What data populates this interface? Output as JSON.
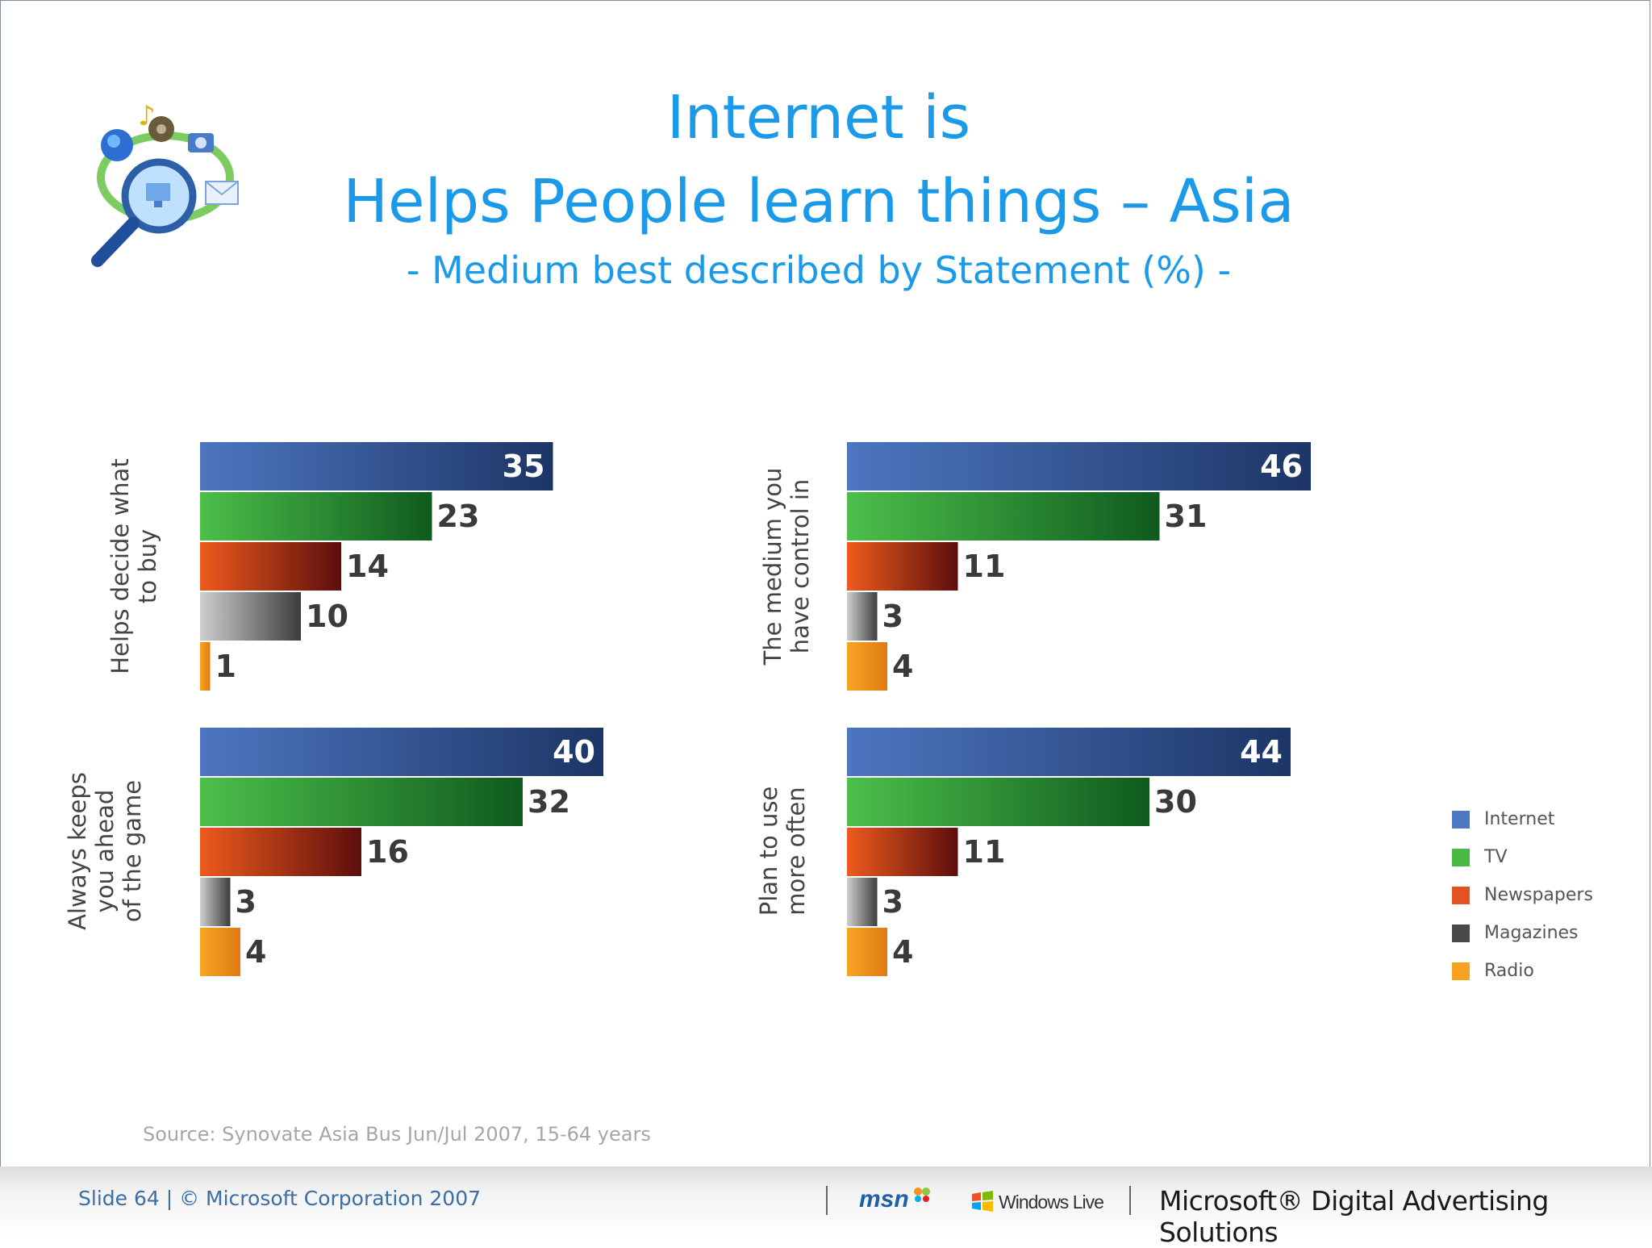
{
  "title_line1": "Internet is",
  "title_line2": "Helps People learn things – Asia",
  "subtitle": "- Medium best described by Statement (%) -",
  "source": "Source: Synovate Asia Bus Jun/Jul 2007, 15-64 years",
  "footer": {
    "slide_text": "Slide 64 | © Microsoft Corporation 2007",
    "msn": "msn",
    "windows_live": "Windows Live",
    "brand": "Microsoft® Digital Advertising Solutions"
  },
  "colors": {
    "Internet": "#3f66b0",
    "TV": "#3fae3f",
    "Newspapers": "#e0501d",
    "Magazines": "#8a8a8a",
    "Radio": "#f39a1c"
  },
  "icons": {
    "logo": "magnifier-media-icon",
    "msn": "msn-butterfly-icon",
    "windows": "windows-flag-icon"
  },
  "chart_data": [
    {
      "type": "bar",
      "orientation": "horizontal",
      "category_label": "Helps decide what to buy",
      "categories": [
        "Internet",
        "TV",
        "Newspapers",
        "Magazines",
        "Radio"
      ],
      "values": [
        35,
        23,
        14,
        10,
        1
      ]
    },
    {
      "type": "bar",
      "orientation": "horizontal",
      "category_label": "The medium you have control in",
      "categories": [
        "Internet",
        "TV",
        "Newspapers",
        "Magazines",
        "Radio"
      ],
      "values": [
        46,
        31,
        11,
        3,
        4
      ]
    },
    {
      "type": "bar",
      "orientation": "horizontal",
      "category_label": "Always keeps you ahead of the game",
      "categories": [
        "Internet",
        "TV",
        "Newspapers",
        "Magazines",
        "Radio"
      ],
      "values": [
        40,
        32,
        16,
        3,
        4
      ]
    },
    {
      "type": "bar",
      "orientation": "horizontal",
      "category_label": "Plan to use more often",
      "categories": [
        "Internet",
        "TV",
        "Newspapers",
        "Magazines",
        "Radio"
      ],
      "values": [
        44,
        30,
        11,
        3,
        4
      ]
    }
  ],
  "legend": [
    "Internet",
    "TV",
    "Newspapers",
    "Magazines",
    "Radio"
  ]
}
